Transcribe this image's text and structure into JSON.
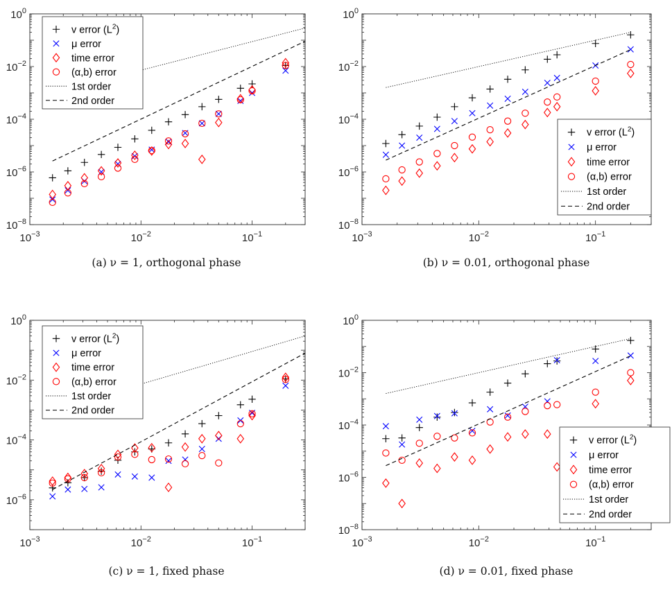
{
  "legend": {
    "entries": [
      {
        "key": "v",
        "label": "v error (L",
        "sup": "2",
        "close": ")",
        "color": "#000000",
        "marker": "plus"
      },
      {
        "key": "mu",
        "label": "μ error",
        "color": "#0000ff",
        "marker": "x"
      },
      {
        "key": "t",
        "label": "time error",
        "color": "#ff0000",
        "marker": "diamond"
      },
      {
        "key": "ab",
        "label": "(α,b) error",
        "color": "#ff0000",
        "marker": "circle"
      },
      {
        "key": "o1",
        "label": "1st order",
        "color": "#000000",
        "marker": "dotted"
      },
      {
        "key": "o2",
        "label": "2nd order",
        "color": "#000000",
        "marker": "dashed"
      }
    ]
  },
  "chart_data": [
    {
      "type": "scatter",
      "caption": "(a) ν = 1, orthogonal phase",
      "xscale": "log",
      "yscale": "log",
      "xlim": [
        0.001,
        0.3
      ],
      "ylim": [
        1e-08,
        1
      ],
      "xticks": [
        "10^-3",
        "10^-2",
        "10^-1"
      ],
      "yticks": [
        "10^-8",
        "10^-6",
        "10^-4",
        "10^-2",
        "10^0"
      ],
      "legend_position": "top-left",
      "x": [
        0.0016,
        0.0022,
        0.0031,
        0.0044,
        0.0062,
        0.0088,
        0.0125,
        0.0177,
        0.025,
        0.0354,
        0.05,
        0.0786,
        0.1,
        0.2
      ],
      "series": [
        {
          "key": "v",
          "y": [
            6e-07,
            1.1e-06,
            2.3e-06,
            4.6e-06,
            8.6e-06,
            1.8e-05,
            3.8e-05,
            8e-05,
            0.00015,
            0.0003,
            0.00057,
            0.0015,
            0.0022,
            0.011
          ]
        },
        {
          "key": "mu",
          "y": [
            9e-08,
            2e-07,
            4.5e-07,
            1e-06,
            2e-06,
            4e-06,
            7e-06,
            1.4e-05,
            3e-05,
            7e-05,
            0.00016,
            0.0005,
            0.001,
            0.007
          ]
        },
        {
          "key": "t",
          "y": [
            1.4e-07,
            3e-07,
            6e-07,
            1.1e-06,
            2.2e-06,
            4.3e-06,
            6.2e-06,
            1.1e-05,
            1.2e-05,
            3e-06,
            7.5e-05,
            0.0006,
            0.0013,
            0.014
          ]
        },
        {
          "key": "ab",
          "y": [
            7e-08,
            1.6e-07,
            3.6e-07,
            6.6e-07,
            1.4e-06,
            3e-06,
            6.5e-06,
            1.5e-05,
            2.8e-05,
            7e-05,
            0.00016,
            0.00055,
            0.0012,
            0.011
          ]
        },
        {
          "key": "o1",
          "line": [
            [
              0.0016,
              0.001
            ],
            [
              0.3,
              0.29
            ]
          ]
        },
        {
          "key": "o2",
          "line": [
            [
              0.0016,
              2.6e-06
            ],
            [
              0.3,
              0.091
            ]
          ]
        }
      ]
    },
    {
      "type": "scatter",
      "caption": "(b) ν = 0.01, orthogonal phase",
      "xscale": "log",
      "yscale": "log",
      "xlim": [
        0.001,
        0.3
      ],
      "ylim": [
        1e-08,
        1
      ],
      "xticks": [
        "10^-3",
        "10^-2",
        "10^-1"
      ],
      "yticks": [
        "10^-8",
        "10^-6",
        "10^-4",
        "10^-2",
        "10^0"
      ],
      "legend_position": "bottom-right",
      "x": [
        0.0016,
        0.0022,
        0.0031,
        0.0044,
        0.0062,
        0.0088,
        0.0125,
        0.0177,
        0.025,
        0.0387,
        0.0468,
        0.1,
        0.2
      ],
      "series": [
        {
          "key": "v",
          "y": [
            1.2e-05,
            2.6e-05,
            5.5e-05,
            0.00012,
            0.0003,
            0.00065,
            0.0014,
            0.0033,
            0.0075,
            0.019,
            0.028,
            0.075,
            0.16
          ]
        },
        {
          "key": "mu",
          "y": [
            4.5e-06,
            1e-05,
            2e-05,
            4.3e-05,
            8.5e-05,
            0.00017,
            0.00033,
            0.0006,
            0.0011,
            0.0024,
            0.0037,
            0.011,
            0.045
          ]
        },
        {
          "key": "t",
          "y": [
            2e-07,
            4.5e-07,
            9e-07,
            1.7e-06,
            3.5e-06,
            7.5e-06,
            1.4e-05,
            3e-05,
            6.3e-05,
            0.00018,
            0.0003,
            0.0012,
            0.0055
          ]
        },
        {
          "key": "ab",
          "y": [
            5.5e-07,
            1.2e-06,
            2.4e-06,
            5e-06,
            1e-05,
            2.1e-05,
            4e-05,
            8.5e-05,
            0.00017,
            0.00045,
            0.0007,
            0.0028,
            0.012
          ]
        },
        {
          "key": "o1",
          "line": [
            [
              0.0016,
              0.0016
            ],
            [
              0.2,
              0.2
            ]
          ]
        },
        {
          "key": "o2",
          "line": [
            [
              0.0016,
              2.8e-06
            ],
            [
              0.2,
              0.044
            ]
          ]
        }
      ]
    },
    {
      "type": "scatter",
      "caption": "(c) ν = 1, fixed phase",
      "xscale": "log",
      "yscale": "log",
      "xlim": [
        0.001,
        0.3
      ],
      "ylim": [
        1e-07,
        1
      ],
      "xticks": [
        "10^-3",
        "10^-2",
        "10^-1"
      ],
      "yticks": [
        "10^-6",
        "10^-4",
        "10^-2",
        "10^0"
      ],
      "legend_position": "top-left",
      "x": [
        0.0016,
        0.0022,
        0.0031,
        0.0044,
        0.0062,
        0.0088,
        0.0125,
        0.0177,
        0.025,
        0.0354,
        0.05,
        0.0786,
        0.1,
        0.2
      ],
      "series": [
        {
          "key": "v",
          "y": [
            2.5e-06,
            3.7e-06,
            5.5e-06,
            9e-06,
            2.1e-05,
            4e-05,
            5e-05,
            8e-05,
            0.00016,
            0.00035,
            0.00065,
            0.0015,
            0.0023,
            0.011
          ]
        },
        {
          "key": "mu",
          "y": [
            1.3e-06,
            2.2e-06,
            2.3e-06,
            2.6e-06,
            7e-06,
            6e-06,
            5.5e-06,
            2e-05,
            2.2e-05,
            5e-05,
            0.00011,
            0.00045,
            0.0008,
            0.0065
          ]
        },
        {
          "key": "t",
          "y": [
            4.2e-06,
            5.6e-06,
            7.5e-06,
            1.1e-05,
            3.3e-05,
            5.4e-05,
            5.5e-05,
            2.6e-06,
            5.8e-05,
            0.00011,
            0.00014,
            0.00011,
            0.00065,
            0.0125
          ]
        },
        {
          "key": "ab",
          "y": [
            3.6e-06,
            5e-06,
            5.5e-06,
            8e-06,
            2.7e-05,
            3.3e-05,
            2.2e-05,
            2.3e-05,
            1.6e-05,
            3e-05,
            1.7e-05,
            0.00035,
            0.00075,
            0.0105
          ]
        },
        {
          "key": "o1",
          "line": [
            [
              0.0016,
              0.001
            ],
            [
              0.3,
              0.3
            ]
          ]
        },
        {
          "key": "o2",
          "line": [
            [
              0.0016,
              2.2e-06
            ],
            [
              0.3,
              0.08
            ]
          ]
        }
      ]
    },
    {
      "type": "scatter",
      "caption": "(d) ν = 0.01, fixed phase",
      "xscale": "log",
      "yscale": "log",
      "xlim": [
        0.001,
        0.3
      ],
      "ylim": [
        1e-08,
        1
      ],
      "xticks": [
        "10^-3",
        "10^-2",
        "10^-1"
      ],
      "yticks": [
        "10^-8",
        "10^-6",
        "10^-4",
        "10^-2",
        "10^0"
      ],
      "legend_position": "bottom-right",
      "x": [
        0.0016,
        0.0022,
        0.0031,
        0.0044,
        0.0062,
        0.0088,
        0.0125,
        0.0177,
        0.025,
        0.0387,
        0.0468,
        0.1,
        0.2
      ],
      "series": [
        {
          "key": "v",
          "y": [
            3e-05,
            3.2e-05,
            8e-05,
            0.0002,
            0.0003,
            0.0007,
            0.0018,
            0.004,
            0.009,
            0.022,
            0.028,
            0.08,
            0.17
          ]
        },
        {
          "key": "mu",
          "y": [
            9e-05,
            1.8e-05,
            0.00016,
            0.00022,
            0.00028,
            6e-05,
            0.0004,
            0.00023,
            0.0005,
            0.0008,
            0.03,
            0.028,
            0.045
          ]
        },
        {
          "key": "t",
          "y": [
            6e-07,
            1e-07,
            3.5e-06,
            2.2e-06,
            6e-06,
            4.5e-06,
            1.2e-05,
            3.5e-05,
            4.5e-05,
            4.5e-05,
            2.5e-06,
            0.00065,
            0.005
          ]
        },
        {
          "key": "ab",
          "y": [
            8.5e-06,
            4.5e-06,
            2e-05,
            3.7e-05,
            3.2e-05,
            5e-05,
            0.00013,
            0.0002,
            0.00033,
            0.00055,
            0.0006,
            0.0018,
            0.01
          ]
        },
        {
          "key": "o1",
          "line": [
            [
              0.0016,
              0.0016
            ],
            [
              0.2,
              0.2
            ]
          ]
        },
        {
          "key": "o2",
          "line": [
            [
              0.0016,
              2.8e-06
            ],
            [
              0.2,
              0.044
            ]
          ]
        }
      ]
    }
  ]
}
